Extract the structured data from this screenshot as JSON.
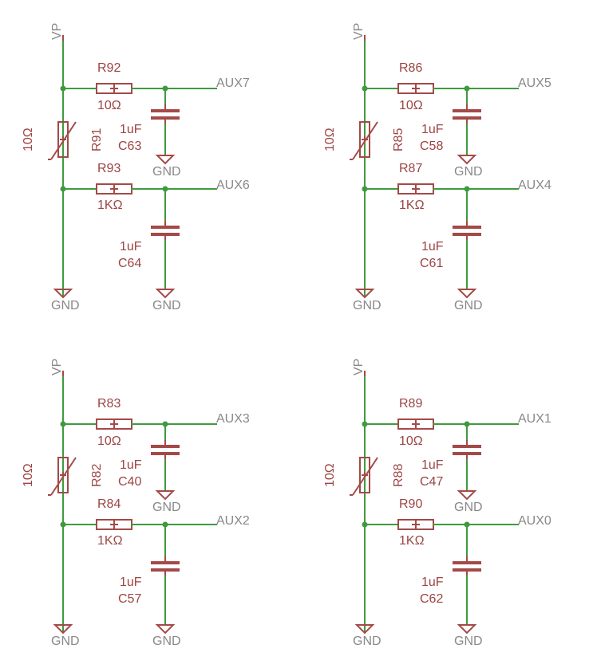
{
  "blocks": [
    {
      "supply": "VP",
      "thermistor": {
        "name": "R91",
        "value": "10Ω"
      },
      "upper": {
        "r_name": "R92",
        "r_value": "10Ω",
        "c_name": "C63",
        "c_value": "1uF",
        "net": "AUX7",
        "c_gnd": "GND"
      },
      "lower": {
        "r_name": "R93",
        "r_value": "1KΩ",
        "c_name": "C64",
        "c_value": "1uF",
        "net": "AUX6",
        "c_gnd": "GND"
      },
      "rail_gnd": "GND"
    },
    {
      "supply": "VP",
      "thermistor": {
        "name": "R85",
        "value": "10Ω"
      },
      "upper": {
        "r_name": "R86",
        "r_value": "10Ω",
        "c_name": "C58",
        "c_value": "1uF",
        "net": "AUX5",
        "c_gnd": "GND"
      },
      "lower": {
        "r_name": "R87",
        "r_value": "1KΩ",
        "c_name": "C61",
        "c_value": "1uF",
        "net": "AUX4",
        "c_gnd": "GND"
      },
      "rail_gnd": "GND"
    },
    {
      "supply": "VP",
      "thermistor": {
        "name": "R82",
        "value": "10Ω"
      },
      "upper": {
        "r_name": "R83",
        "r_value": "10Ω",
        "c_name": "C40",
        "c_value": "1uF",
        "net": "AUX3",
        "c_gnd": "GND"
      },
      "lower": {
        "r_name": "R84",
        "r_value": "1KΩ",
        "c_name": "C57",
        "c_value": "1uF",
        "net": "AUX2",
        "c_gnd": "GND"
      },
      "rail_gnd": "GND"
    },
    {
      "supply": "VP",
      "thermistor": {
        "name": "R88",
        "value": "10Ω"
      },
      "upper": {
        "r_name": "R89",
        "r_value": "10Ω",
        "c_name": "C47",
        "c_value": "1uF",
        "net": "AUX1",
        "c_gnd": "GND"
      },
      "lower": {
        "r_name": "R90",
        "r_value": "1KΩ",
        "c_name": "C62",
        "c_value": "1uF",
        "net": "AUX0",
        "c_gnd": "GND"
      },
      "rail_gnd": "GND"
    }
  ],
  "colors": {
    "wire": "#3f9a3f",
    "part": "#a34a48",
    "part_text": "#9c4543",
    "net_text": "#888888"
  }
}
